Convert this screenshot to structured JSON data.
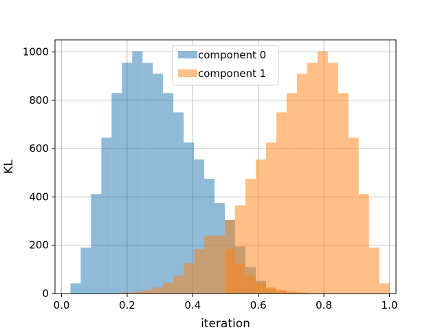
{
  "chart_data": {
    "type": "bar",
    "title": "",
    "xlabel": "iteration",
    "ylabel": "KL",
    "xlim": [
      -0.02,
      1.02
    ],
    "ylim": [
      0,
      1050
    ],
    "xticks": [
      0.0,
      0.2,
      0.4,
      0.6,
      0.8,
      1.0
    ],
    "xtick_labels": [
      "0.0",
      "0.2",
      "0.4",
      "0.6",
      "0.8",
      "1.0"
    ],
    "yticks": [
      0,
      200,
      400,
      600,
      800,
      1000
    ],
    "ytick_labels": [
      "0",
      "200",
      "400",
      "600",
      "800",
      "1000"
    ],
    "grid": true,
    "legend_position": "top-center",
    "bin_width": 0.0314,
    "series": [
      {
        "name": "component 0",
        "color": "#1f77b4",
        "alpha": 0.5,
        "bin_start": 0.027,
        "values": [
          42,
          190,
          412,
          645,
          830,
          955,
          1003,
          955,
          910,
          830,
          750,
          625,
          555,
          475,
          375,
          305,
          195,
          110,
          52,
          20,
          9,
          5,
          2,
          1,
          0,
          0,
          0,
          0,
          0,
          0
        ]
      },
      {
        "name": "component 1",
        "color": "#ff7f0e",
        "alpha": 0.5,
        "bin_start": 0.027,
        "values": [
          0,
          0,
          0,
          0,
          1,
          5,
          8,
          15,
          25,
          45,
          75,
          125,
          185,
          240,
          240,
          185,
          125,
          75,
          45,
          25,
          15,
          8,
          5,
          2,
          0,
          0,
          0,
          0,
          0,
          0
        ]
      }
    ],
    "series2_main": {
      "name": "component 1",
      "bin_start": 0.498,
      "values": [
        305,
        365,
        475,
        555,
        625,
        750,
        830,
        910,
        955,
        1003,
        955,
        830,
        645,
        412,
        190,
        42
      ]
    }
  }
}
